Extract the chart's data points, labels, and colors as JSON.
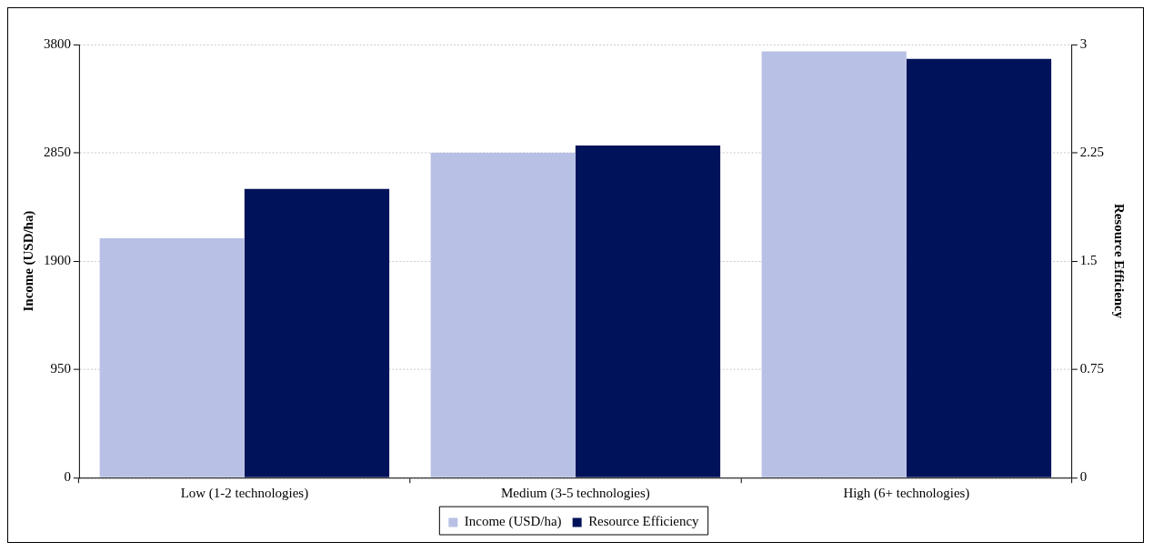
{
  "chart_data": {
    "type": "bar",
    "categories": [
      "Low (1-2 technologies)",
      "Medium (3-5 technologies)",
      "High (6+ technologies)"
    ],
    "series": [
      {
        "name": "Income (USD/ha)",
        "color": "#b8c1e5",
        "values": [
          2100,
          2850,
          3740
        ]
      },
      {
        "name": "Resource Efficiency",
        "color": "#00135a",
        "values": [
          2.0,
          2.3,
          2.9
        ],
        "axis": "y2"
      }
    ],
    "ylabel": "Income (USD/ha)",
    "y2label": "Resource Efficiency",
    "ylim": [
      0,
      3800
    ],
    "yticks": [
      0,
      950,
      1900,
      2850,
      3800
    ],
    "y2lim": [
      0,
      3
    ],
    "y2ticks": [
      0,
      0.75,
      1.5,
      2.25,
      3
    ],
    "grid": "y",
    "legend": "bottom"
  }
}
